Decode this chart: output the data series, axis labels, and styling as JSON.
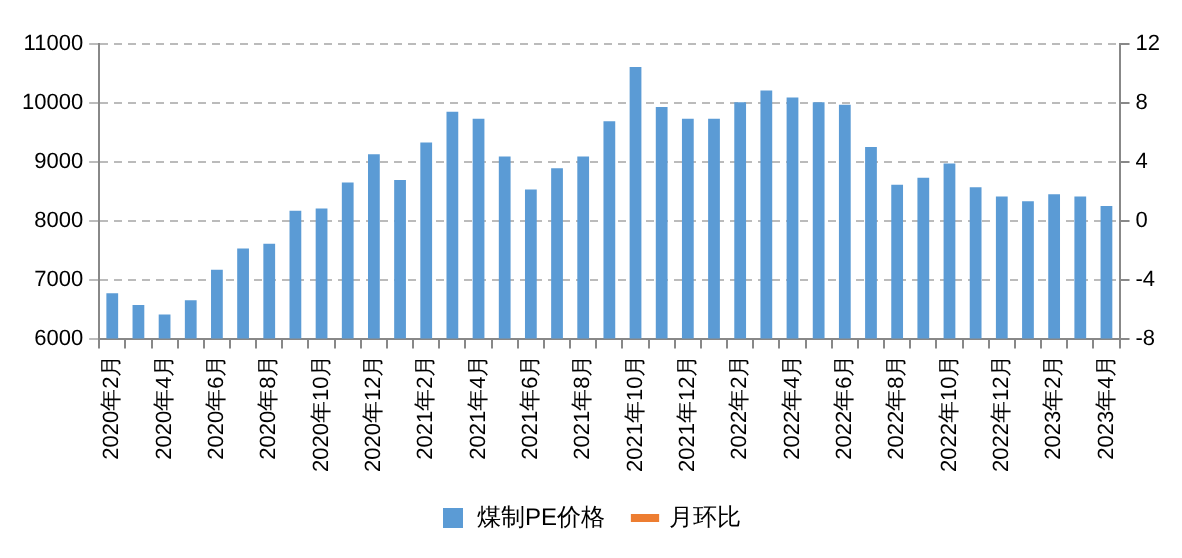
{
  "chart_data": {
    "type": "bar",
    "categories": [
      "2020年2月",
      null,
      "2020年4月",
      null,
      "2020年6月",
      null,
      "2020年8月",
      null,
      "2020年10月",
      null,
      "2020年12月",
      null,
      "2021年2月",
      null,
      "2021年4月",
      null,
      "2021年6月",
      null,
      "2021年8月",
      null,
      "2021年10月",
      null,
      "2021年12月",
      null,
      "2022年2月",
      null,
      "2022年4月",
      null,
      "2022年6月",
      null,
      "2022年8月",
      null,
      "2022年10月",
      null,
      "2022年12月",
      null,
      "2023年2月",
      null,
      "2023年4月"
    ],
    "series": [
      {
        "name": "煤制PE价格",
        "color": "#5b9bd5",
        "values": [
          6770,
          6570,
          6410,
          6650,
          7170,
          7530,
          7610,
          8170,
          8210,
          8650,
          9130,
          8690,
          9330,
          9850,
          9730,
          9090,
          8530,
          8890,
          9090,
          9690,
          10610,
          9930,
          9730,
          9730,
          10010,
          10210,
          10090,
          10010,
          9970,
          9250,
          8610,
          8730,
          8970,
          8570,
          8410,
          8330,
          8450,
          8410,
          8250
        ]
      },
      {
        "name": "月环比",
        "type": "line",
        "axis": "y2",
        "color": "#ed7d31",
        "values": [
          null,
          null,
          null,
          null,
          null,
          null,
          null,
          null,
          null,
          null,
          null,
          null,
          null,
          null,
          null,
          null,
          null,
          null,
          null,
          null,
          null,
          null,
          null,
          null,
          null,
          null,
          null,
          null,
          null,
          null,
          null,
          null,
          null,
          null,
          null,
          null,
          null,
          null,
          null
        ]
      }
    ],
    "ylim": [
      6000,
      11000
    ],
    "yticks": [
      6000,
      7000,
      8000,
      9000,
      10000,
      11000
    ],
    "y2lim": [
      -8,
      12
    ],
    "y2ticks": [
      -8,
      -4,
      0,
      4,
      8,
      12
    ],
    "grid": "y",
    "legend": "bottom"
  }
}
